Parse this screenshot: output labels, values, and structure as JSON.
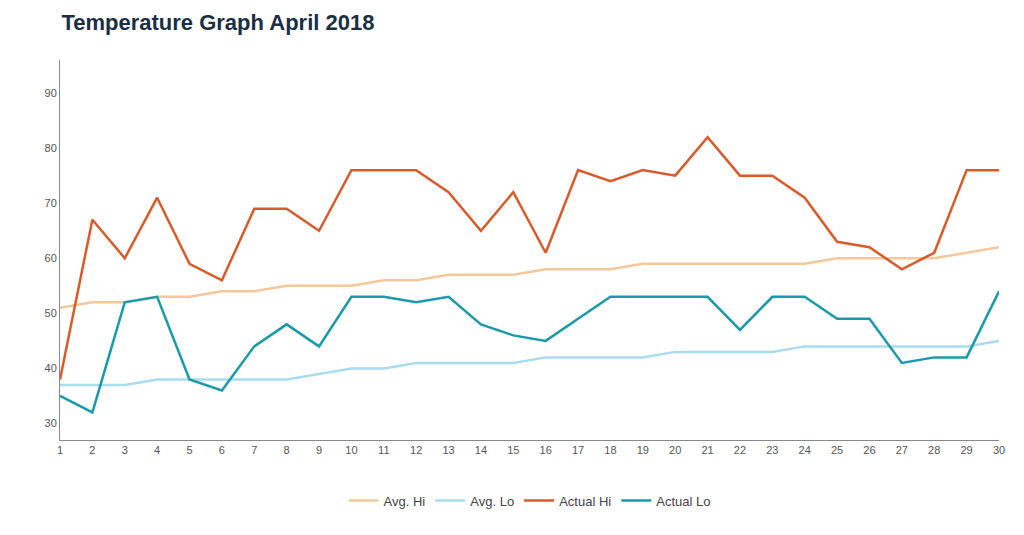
{
  "chart_data": {
    "type": "line",
    "title": "Temperature Graph April 2018",
    "x": [
      1,
      2,
      3,
      4,
      5,
      6,
      7,
      8,
      9,
      10,
      11,
      12,
      13,
      14,
      15,
      16,
      17,
      18,
      19,
      20,
      21,
      22,
      23,
      24,
      25,
      26,
      27,
      28,
      29,
      30
    ],
    "series": [
      {
        "name": "Avg. Hi",
        "color": "#f5c89b",
        "values": [
          51,
          52,
          52,
          53,
          53,
          54,
          54,
          55,
          55,
          55,
          56,
          56,
          57,
          57,
          57,
          58,
          58,
          58,
          59,
          59,
          59,
          59,
          59,
          59,
          60,
          60,
          60,
          60,
          61,
          62
        ]
      },
      {
        "name": "Avg. Lo",
        "color": "#aadcef",
        "values": [
          37,
          37,
          37,
          38,
          38,
          38,
          38,
          38,
          39,
          40,
          40,
          41,
          41,
          41,
          41,
          42,
          42,
          42,
          42,
          43,
          43,
          43,
          43,
          44,
          44,
          44,
          44,
          44,
          44,
          45
        ]
      },
      {
        "name": "Actual Hi",
        "color": "#d95b2a",
        "values": [
          38,
          67,
          60,
          71,
          59,
          56,
          69,
          69,
          65,
          76,
          76,
          76,
          72,
          65,
          72,
          61,
          76,
          74,
          76,
          75,
          82,
          75,
          75,
          71,
          63,
          62,
          58,
          61,
          76,
          76
        ]
      },
      {
        "name": "Actual Lo",
        "color": "#1a9aaa",
        "values": [
          35,
          32,
          52,
          53,
          38,
          36,
          44,
          48,
          44,
          53,
          53,
          52,
          53,
          48,
          46,
          45,
          49,
          53,
          53,
          53,
          53,
          47,
          53,
          53,
          49,
          49,
          41,
          42,
          42,
          54
        ]
      }
    ],
    "xlim": [
      1,
      30
    ],
    "xticks": [
      1,
      2,
      3,
      4,
      5,
      6,
      7,
      8,
      9,
      10,
      11,
      12,
      13,
      14,
      15,
      16,
      17,
      18,
      19,
      20,
      21,
      22,
      23,
      24,
      25,
      26,
      27,
      28,
      29,
      30
    ],
    "ylim": [
      27,
      96
    ],
    "yticks": [
      30,
      40,
      50,
      60,
      70,
      80,
      90
    ],
    "grid": false,
    "legend": "bottom"
  }
}
